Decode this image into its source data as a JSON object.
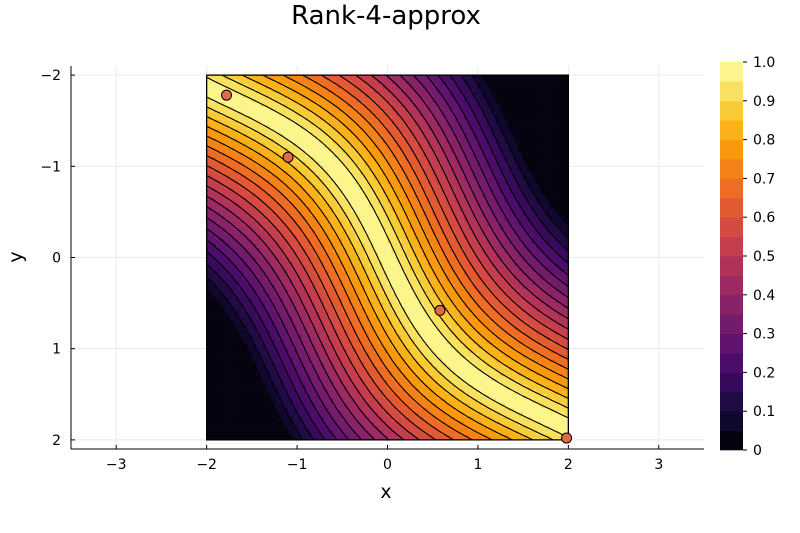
{
  "chart_data": {
    "type": "contour",
    "title": "Rank-4-approx",
    "xlabel": "x",
    "ylabel": "y",
    "xlim": [
      -3.5,
      3.5
    ],
    "ylim": [
      -2.1,
      2.1
    ],
    "y_axis_inverted": true,
    "grid": true,
    "domain": {
      "x": [
        -2,
        2
      ],
      "y": [
        -2,
        2
      ]
    },
    "x_ticks": [
      -3,
      -2,
      -1,
      0,
      1,
      2,
      3
    ],
    "y_ticks": [
      -2,
      -1,
      0,
      1,
      2
    ],
    "x_tick_labels": [
      "−3",
      "−2",
      "−1",
      "0",
      "1",
      "2",
      "3"
    ],
    "y_tick_labels": [
      "−2",
      "−1",
      "0",
      "1",
      "2"
    ],
    "colorbar": {
      "colormap": "inferno",
      "min": 0,
      "max": 1,
      "levels": 20,
      "ticks": [
        0,
        0.1,
        0.2,
        0.3,
        0.4,
        0.5,
        0.6,
        0.7,
        0.8,
        0.9,
        1.0
      ],
      "tick_labels": [
        "0",
        "0.1",
        "0.2",
        "0.3",
        "0.4",
        "0.5",
        "0.6",
        "0.7",
        "0.8",
        "0.9",
        "1.0"
      ]
    },
    "points": [
      {
        "x": -1.78,
        "y": -1.78
      },
      {
        "x": -1.1,
        "y": -1.1
      },
      {
        "x": 0.58,
        "y": 0.58
      },
      {
        "x": 1.98,
        "y": 1.98
      }
    ],
    "colors": {
      "point_fill": "#e3694a",
      "point_stroke": "#000000",
      "contour_line": "#000000",
      "grid": "#e6e6e6"
    }
  }
}
